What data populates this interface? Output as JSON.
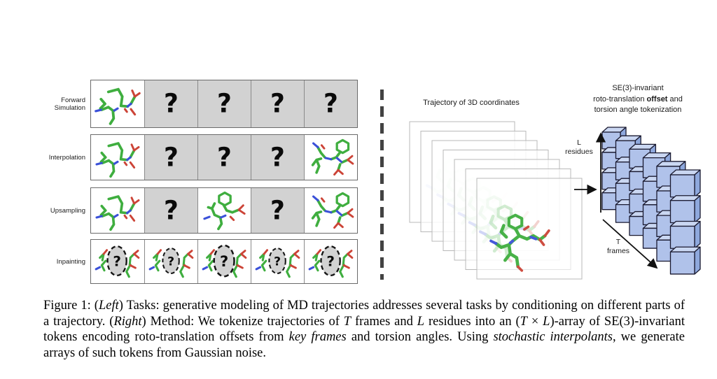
{
  "figure": {
    "left_panel": {
      "question_mark": "?",
      "tasks": [
        {
          "label": "Forward\nSimulation",
          "cells": [
            "mol_a",
            "q",
            "q",
            "q",
            "q"
          ]
        },
        {
          "label": "Interpolation",
          "cells": [
            "mol_a",
            "q",
            "q",
            "q",
            "mol_b"
          ]
        },
        {
          "label": "Upsampling",
          "cells": [
            "mol_a",
            "q",
            "mol_c",
            "q",
            "mol_b"
          ]
        },
        {
          "label": "Inpainting",
          "cells": [
            "inpaint",
            "inpaint",
            "inpaint",
            "inpaint",
            "inpaint"
          ]
        }
      ]
    },
    "right_panel": {
      "trajectory_label": "Trajectory of 3D coordinates",
      "tok_line1": "SE(3)-invariant",
      "tok_line2_pre": "roto-translation ",
      "tok_line2_bold": "offset",
      "tok_line2_post": " and",
      "tok_line3": "torsion angle tokenization",
      "l_axis_line1": "L",
      "l_axis_line2": "residues",
      "t_axis_line1": "T",
      "t_axis_line2": "frames",
      "token_grid": {
        "rows_L": 4,
        "depth_T": 6
      }
    },
    "colors": {
      "mol_green": "#3fae3f",
      "mol_blue": "#3a50d9",
      "mol_red": "#cc4437",
      "cell_gray": "#d2d2d2",
      "cube_front": "#b0c2ea",
      "cube_top": "#cad7f2",
      "cube_side": "#8ea8dd",
      "cube_edge": "#1a1a30"
    },
    "caption": {
      "segments": [
        {
          "t": "Figure 1: ("
        },
        {
          "t": "Left",
          "i": true
        },
        {
          "t": ") Tasks: generative modeling of MD trajectories addresses several tasks by conditioning on different parts of a trajectory. ("
        },
        {
          "t": "Right",
          "i": true
        },
        {
          "t": ") Method: We tokenize trajectories of "
        },
        {
          "t": "T",
          "i": true
        },
        {
          "t": " frames and "
        },
        {
          "t": "L",
          "i": true
        },
        {
          "t": " residues into an ("
        },
        {
          "t": "T",
          "i": true
        },
        {
          "t": " × "
        },
        {
          "t": "L",
          "i": true
        },
        {
          "t": ")-array of SE(3)-invariant tokens encoding roto-translation offsets from "
        },
        {
          "t": "key frames",
          "i": true
        },
        {
          "t": " and torsion angles. Using "
        },
        {
          "t": "stochastic interpolants",
          "i": true
        },
        {
          "t": ", we generate arrays of such tokens from Gaussian noise."
        }
      ]
    }
  }
}
